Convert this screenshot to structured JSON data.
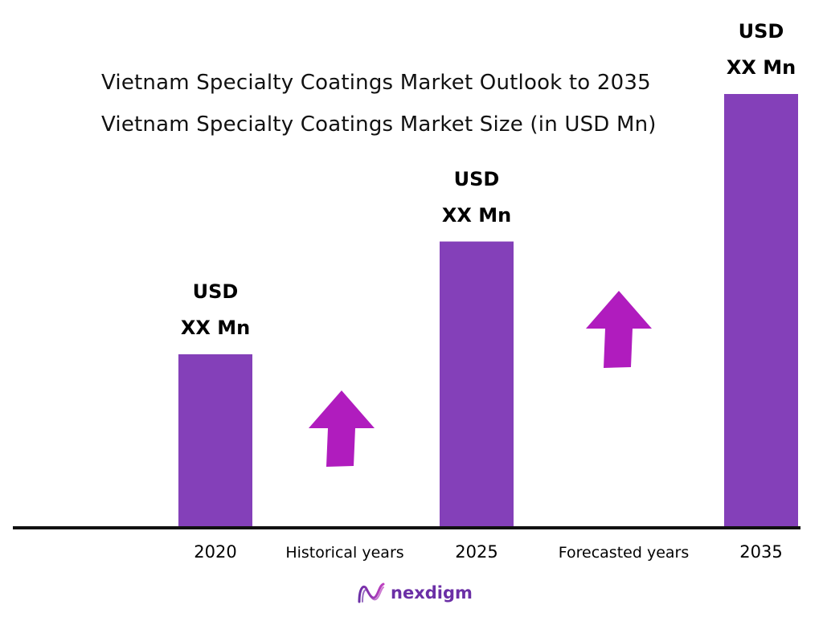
{
  "title": "Vietnam Specialty Coatings Market Outlook to 2035",
  "subtitle": "Vietnam Specialty Coatings Market Size (in USD Mn)",
  "colors": {
    "bar": "#8440b9",
    "arrow": "#b01cbe",
    "axis": "#111111",
    "brand": "#6b2fa6"
  },
  "chart_data": {
    "type": "bar",
    "categories": [
      "2020",
      "2025",
      "2035"
    ],
    "values": [
      2,
      3.3,
      5
    ],
    "value_labels": [
      [
        "USD",
        "XX Mn"
      ],
      [
        "USD",
        "XX Mn"
      ],
      [
        "USD",
        "XX Mn"
      ]
    ],
    "ylim": [
      0,
      5
    ],
    "grid": false,
    "legend": "none",
    "period_labels": [
      "Historical years",
      "Forecasted years"
    ],
    "annotations": [
      "up-arrow-icon",
      "up-arrow-icon"
    ]
  },
  "brand": {
    "name": "nexdigm",
    "icon": "nexdigm-logo-icon"
  }
}
